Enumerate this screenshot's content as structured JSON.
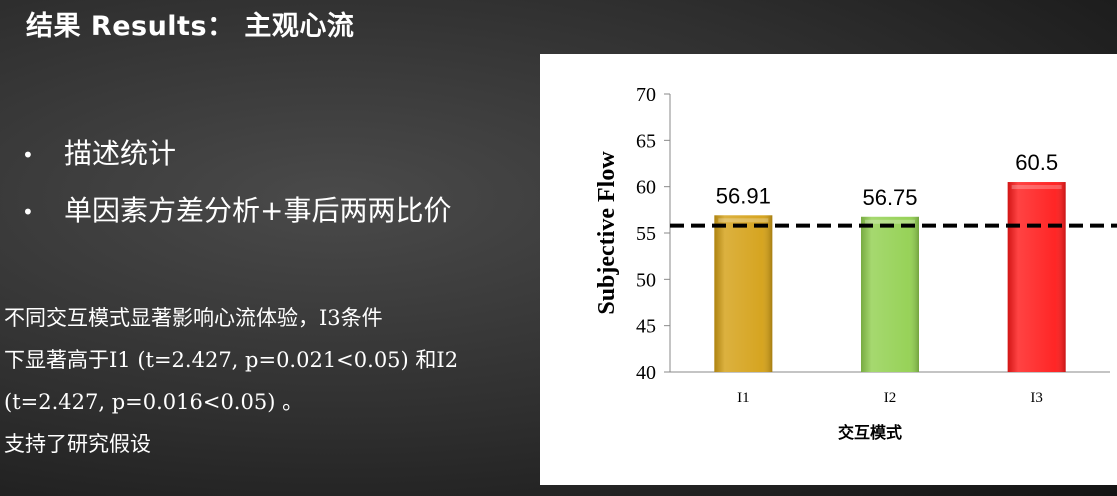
{
  "slide": {
    "title": "结果 Results： 主观心流",
    "bullets": [
      "描述统计",
      "单因素方差分析+事后两两比价"
    ],
    "body_lines": [
      "不同交互模式显著影响心流体验，I3条件",
      "下显著高于I1 (t=2.427, p=0.021<0.05) 和I2",
      "(t=2.427, p=0.016<0.05) 。",
      "支持了研究假设"
    ]
  },
  "chart_data": {
    "type": "bar",
    "categories": [
      "I1",
      "I2",
      "I3"
    ],
    "values": [
      56.91,
      56.75,
      60.5
    ],
    "data_labels": [
      "56.91",
      "56.75",
      "60.5"
    ],
    "colors": [
      "#d4a015",
      "#92d050",
      "#ff1a1a"
    ],
    "xlabel": "交互模式",
    "ylabel": "Subjective Flow",
    "ylim": [
      40,
      70
    ],
    "yticks": [
      40,
      45,
      50,
      55,
      60,
      65,
      70
    ],
    "reference_line": 55.8,
    "grid": false,
    "legend": "none"
  }
}
